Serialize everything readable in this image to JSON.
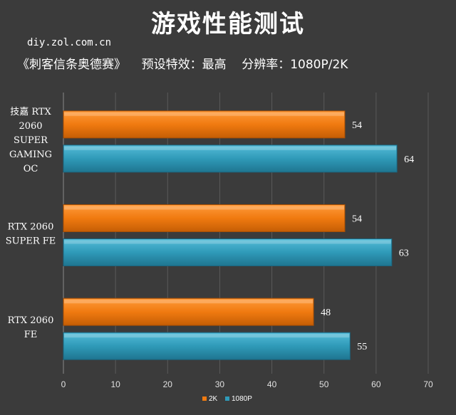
{
  "header": {
    "title": "游戏性能测试",
    "source": "diy.zol.com.cn",
    "subtitle": "《刺客信条奥德赛》    预设特效：最高    分辨率：1080P/2K"
  },
  "chart_data": {
    "type": "bar",
    "orientation": "horizontal",
    "categories": [
      [
        "技嘉 RTX",
        "2060",
        "SUPER",
        "GAMING",
        "OC"
      ],
      [
        "RTX 2060",
        "SUPER FE"
      ],
      [
        "RTX 2060",
        "FE"
      ]
    ],
    "series": [
      {
        "name": "2K",
        "color": "#f07a10",
        "values": [
          54,
          54,
          48
        ]
      },
      {
        "name": "1080P",
        "color": "#2f9ab8",
        "values": [
          64,
          63,
          55
        ]
      }
    ],
    "xlim": [
      0,
      70
    ],
    "xticks": [
      0,
      10,
      20,
      30,
      40,
      50,
      60,
      70
    ],
    "grid": true,
    "legend_position": "bottom"
  }
}
